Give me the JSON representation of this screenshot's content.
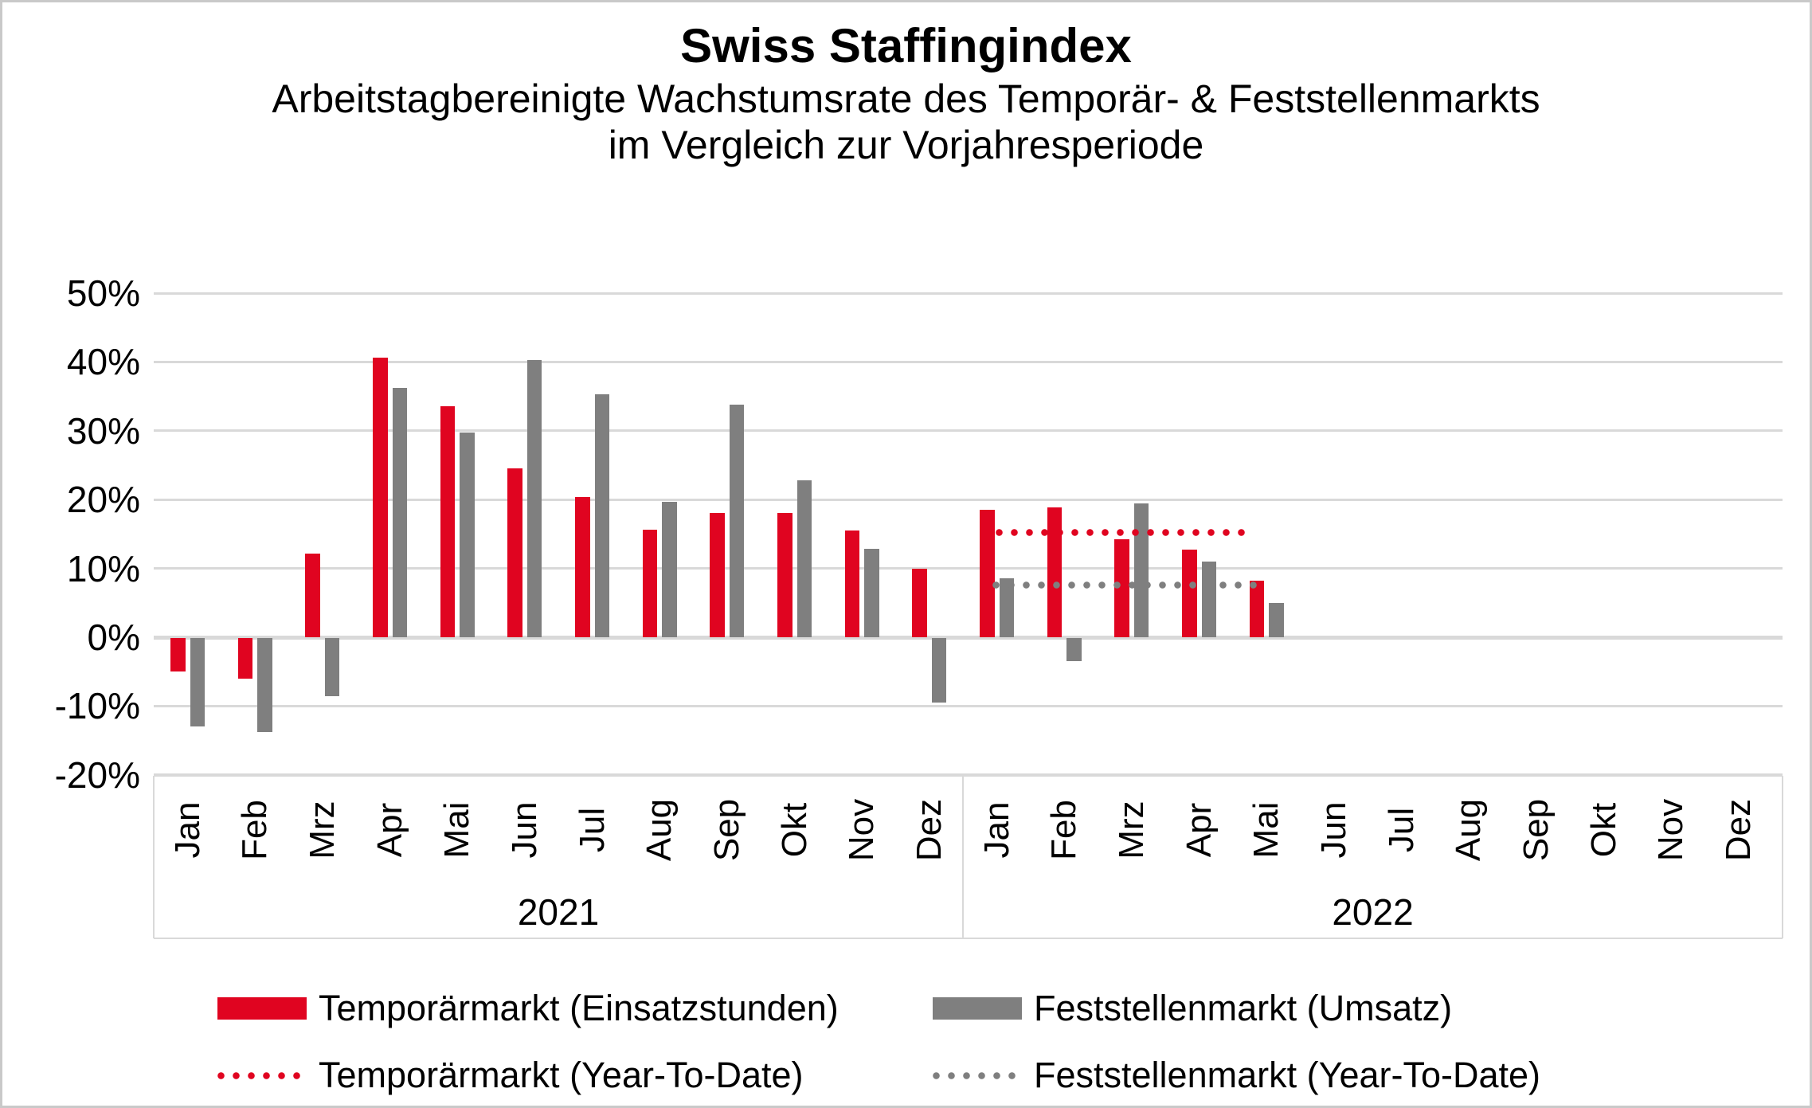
{
  "header": {
    "title": "Swiss Staffingindex",
    "subtitle_line1": "Arbeitstagbereinigte Wachstumsrate des Temporär- & Feststellenmarkts",
    "subtitle_line2": "im Vergleich zur Vorjahresperiode"
  },
  "colors": {
    "temporaermarkt_red": "#E00420",
    "feststellenmarkt_gray": "#7F7F7F",
    "gridline_gray": "#D9D9D9",
    "frame_gray": "#C9C9C9",
    "text_black": "#000000",
    "background": "#FFFFFF"
  },
  "chart_data": {
    "type": "bar",
    "value_unit": "percent_yoy_growth",
    "grid": true,
    "y_axis": {
      "min": -20,
      "max": 50,
      "step": 10,
      "tick_labels": [
        "50%",
        "40%",
        "30%",
        "20%",
        "10%",
        "0%",
        "-10%",
        "-20%"
      ]
    },
    "x_axis": {
      "group_labels": [
        "2021",
        "2022"
      ],
      "month_labels": [
        "Jan",
        "Feb",
        "Mrz",
        "Apr",
        "Mai",
        "Jun",
        "Jul",
        "Aug",
        "Sep",
        "Okt",
        "Nov",
        "Dez"
      ]
    },
    "series": [
      {
        "name": "Temporärmarkt (Einsatzstunden)",
        "type": "bar",
        "color": "#E00420",
        "values": {
          "2021": [
            -4.9,
            -5.9,
            12.2,
            40.6,
            33.6,
            24.5,
            20.4,
            15.6,
            18.1,
            18.1,
            15.5,
            10.0
          ],
          "2022": [
            18.5,
            18.9,
            14.2,
            12.7,
            8.2,
            null,
            null,
            null,
            null,
            null,
            null,
            null
          ]
        }
      },
      {
        "name": "Feststellenmarkt (Umsatz)",
        "type": "bar",
        "color": "#7F7F7F",
        "values": {
          "2021": [
            -12.8,
            -13.6,
            -8.5,
            36.2,
            29.7,
            40.3,
            35.3,
            19.7,
            33.8,
            22.8,
            12.9,
            -9.4
          ],
          "2022": [
            8.6,
            -3.3,
            19.4,
            11.0,
            5.0,
            null,
            null,
            null,
            null,
            null,
            null,
            null
          ]
        }
      },
      {
        "name": "Temporärmarkt (Year-To-Date)",
        "type": "dotted_line",
        "color": "#E00420",
        "value": 15.2,
        "span": {
          "year": "2022",
          "from_month": "Jan",
          "to_month": "Mai"
        }
      },
      {
        "name": "Feststellenmarkt (Year-To-Date)",
        "type": "dotted_line",
        "color": "#7F7F7F",
        "value": 7.6,
        "span": {
          "year": "2022",
          "from_month": "Jan",
          "to_month": "Mai"
        }
      }
    ]
  },
  "legend": {
    "row1": [
      {
        "label": "Temporärmarkt (Einsatzstunden)",
        "swatch": "solid-red"
      },
      {
        "label": "Feststellenmarkt (Umsatz)",
        "swatch": "solid-gray"
      }
    ],
    "row2": [
      {
        "label": "Temporärmarkt (Year-To-Date)",
        "swatch": "dotted-red"
      },
      {
        "label": "Feststellenmarkt (Year-To-Date)",
        "swatch": "dotted-gray"
      }
    ]
  }
}
